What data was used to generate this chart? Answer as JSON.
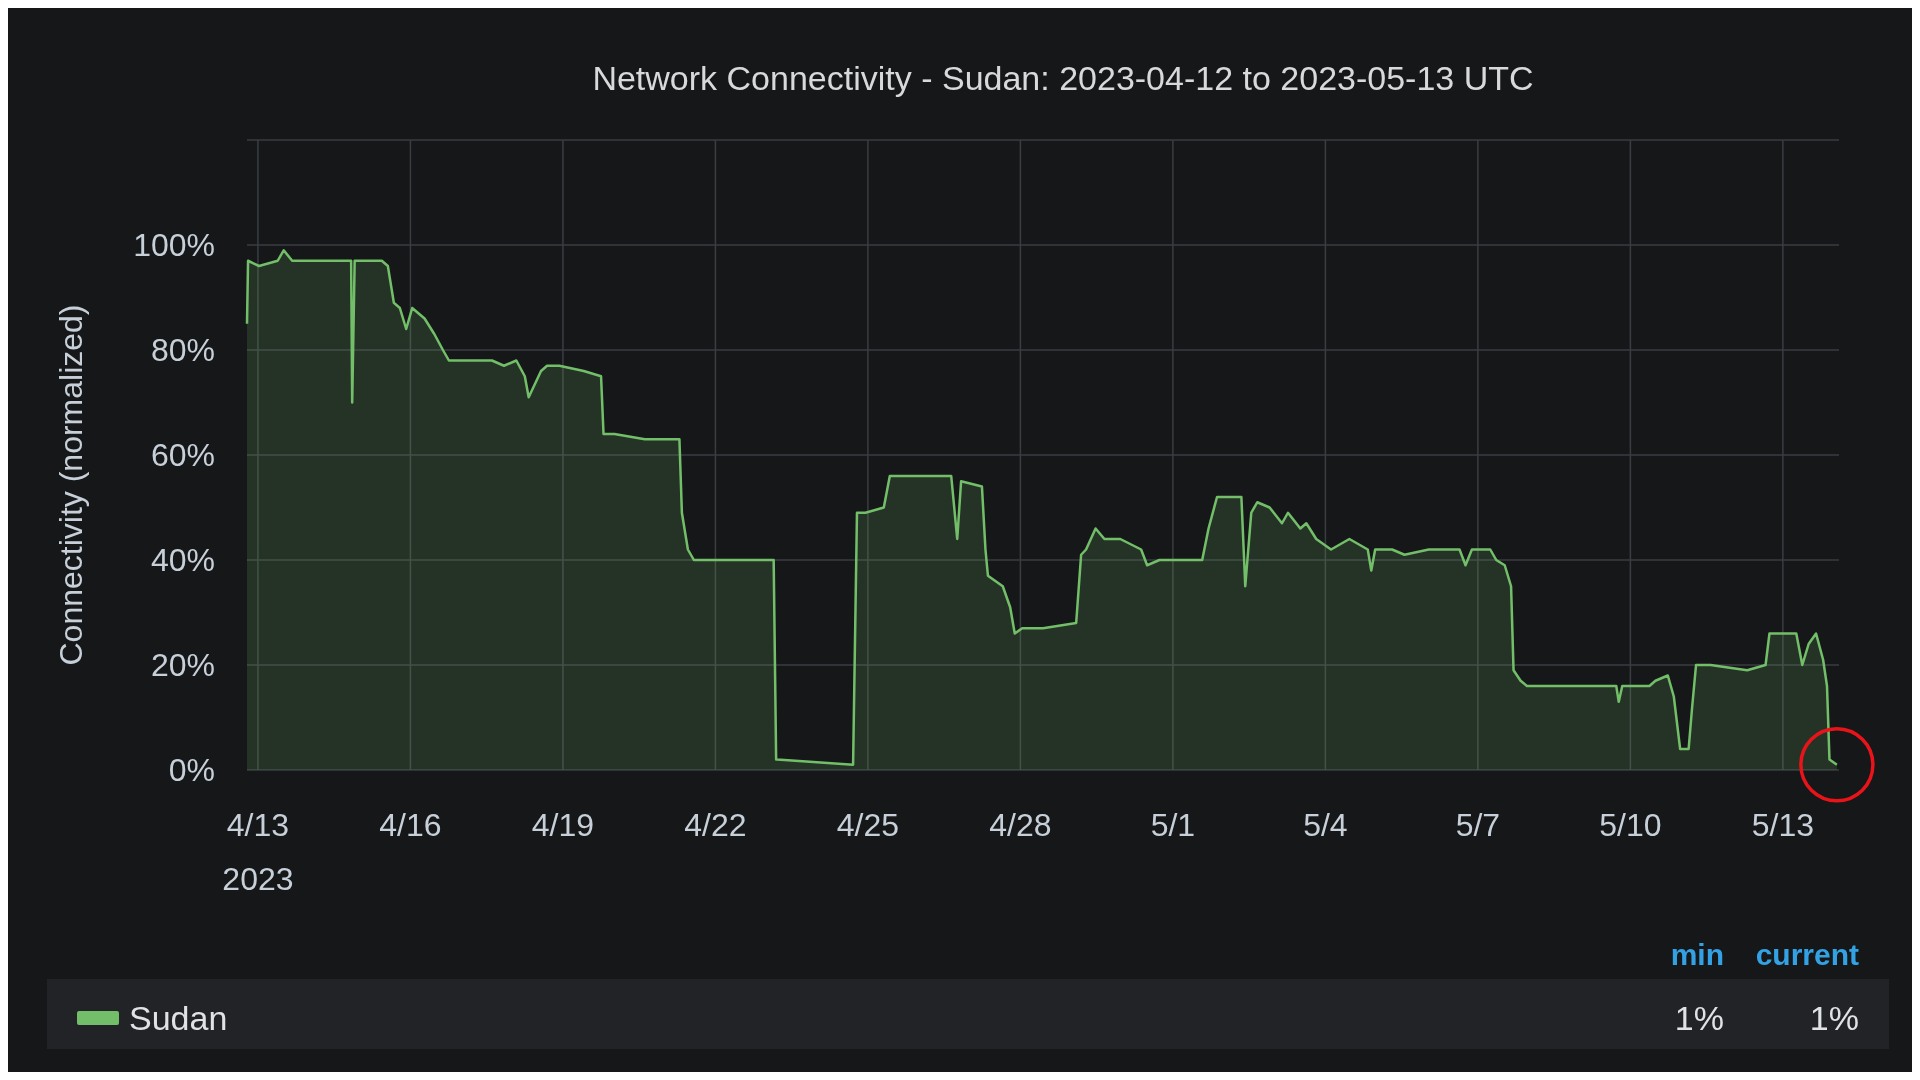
{
  "chart_data": {
    "type": "area",
    "title": "Network Connectivity - Sudan: 2023-04-12 to 2023-05-13 UTC",
    "ylabel": "Connectivity (normalized)",
    "xlim": [
      "2023-04-12T18:50",
      "2023-05-14T02:30"
    ],
    "xticks": [
      {
        "value": "2023-04-13T00:00",
        "label": "4/13\n2023"
      },
      {
        "value": "2023-04-16T00:00",
        "label": "4/16"
      },
      {
        "value": "2023-04-19T00:00",
        "label": "4/19"
      },
      {
        "value": "2023-04-22T00:00",
        "label": "4/22"
      },
      {
        "value": "2023-04-25T00:00",
        "label": "4/25"
      },
      {
        "value": "2023-04-28T00:00",
        "label": "4/28"
      },
      {
        "value": "2023-05-01T00:00",
        "label": "5/1"
      },
      {
        "value": "2023-05-04T00:00",
        "label": "5/4"
      },
      {
        "value": "2023-05-07T00:00",
        "label": "5/7"
      },
      {
        "value": "2023-05-10T00:00",
        "label": "5/10"
      },
      {
        "value": "2023-05-13T00:00",
        "label": "5/13"
      }
    ],
    "ylim": [
      0,
      120
    ],
    "yticks": [
      {
        "value": 0,
        "label": "0%"
      },
      {
        "value": 20,
        "label": "20%"
      },
      {
        "value": 40,
        "label": "40%"
      },
      {
        "value": 60,
        "label": "60%"
      },
      {
        "value": 80,
        "label": "80%"
      },
      {
        "value": 100,
        "label": "100%"
      }
    ],
    "grid": true,
    "legend": "bottom",
    "line_style": "solid",
    "annotations": [
      "min",
      "current",
      "1%",
      "1%"
    ],
    "series": [
      {
        "name": "Sudan",
        "color": "#73bf69",
        "x": [
          "2023-04-12T18:50",
          "2023-04-12T19:20",
          "2023-04-13T00:30",
          "2023-04-13T09:20",
          "2023-04-13T12:10",
          "2023-04-13T16:10",
          "2023-04-13T20:50",
          "2023-04-14T14:10",
          "2023-04-14T20:00",
          "2023-04-14T20:30",
          "2023-04-14T21:40",
          "2023-04-15T10:30",
          "2023-04-15T13:20",
          "2023-04-15T16:10",
          "2023-04-15T19:00",
          "2023-04-15T22:00",
          "2023-04-16T00:50",
          "2023-04-16T06:40",
          "2023-04-16T11:20",
          "2023-04-16T15:20",
          "2023-04-16T18:10",
          "2023-04-17T02:50",
          "2023-04-17T14:30",
          "2023-04-17T20:10",
          "2023-04-18T02:00",
          "2023-04-18T06:00",
          "2023-04-18T07:50",
          "2023-04-18T13:40",
          "2023-04-18T16:30",
          "2023-04-18T22:20",
          "2023-04-19T09:50",
          "2023-04-19T18:00",
          "2023-04-19T19:10",
          "2023-04-20T00:20",
          "2023-04-20T14:40",
          "2023-04-21T07:00",
          "2023-04-21T08:10",
          "2023-04-21T11:00",
          "2023-04-21T13:50",
          "2023-04-23T03:30",
          "2023-04-23T04:40",
          "2023-04-23T05:10",
          "2023-04-24T17:00",
          "2023-04-24T18:50",
          "2023-04-24T22:50",
          "2023-04-25T07:30",
          "2023-04-25T10:20",
          "2023-04-26T00:50",
          "2023-04-26T15:20",
          "2023-04-26T18:10",
          "2023-04-26T20:00",
          "2023-04-27T05:50",
          "2023-04-27T07:30",
          "2023-04-27T08:40",
          "2023-04-27T15:40",
          "2023-04-27T19:10",
          "2023-04-27T21:20",
          "2023-04-28T00:50",
          "2023-04-28T10:40",
          "2023-04-29T02:20",
          "2023-04-29T04:40",
          "2023-04-29T07:00",
          "2023-04-29T11:30",
          "2023-04-29T15:40",
          "2023-04-29T23:10",
          "2023-04-30T09:00",
          "2023-04-30T11:50",
          "2023-04-30T17:40",
          "2023-05-01T13:50",
          "2023-05-01T16:50",
          "2023-05-01T20:50",
          "2023-05-02T01:30",
          "2023-05-02T08:20",
          "2023-05-02T10:10",
          "2023-05-02T13:00",
          "2023-05-02T15:50",
          "2023-05-02T21:40",
          "2023-05-03T03:30",
          "2023-05-03T06:20",
          "2023-05-03T12:10",
          "2023-05-03T15:00",
          "2023-05-03T19:40",
          "2023-05-04T02:40",
          "2023-05-04T11:20",
          "2023-05-04T20:00",
          "2023-05-04T21:40",
          "2023-05-04T23:30",
          "2023-05-05T07:30",
          "2023-05-05T13:20",
          "2023-05-06T00:50",
          "2023-05-06T15:20",
          "2023-05-06T18:10",
          "2023-05-06T21:10",
          "2023-05-07T05:50",
          "2023-05-07T08:40",
          "2023-05-07T12:40",
          "2023-05-07T15:40",
          "2023-05-07T16:50",
          "2023-05-07T20:10",
          "2023-05-07T23:10",
          "2023-05-08T16:30",
          "2023-05-09T09:50",
          "2023-05-09T17:20",
          "2023-05-09T18:30",
          "2023-05-09T20:10",
          "2023-05-10T09:00",
          "2023-05-10T11:50",
          "2023-05-10T17:40",
          "2023-05-10T20:30",
          "2023-05-10T23:30",
          "2023-05-11T03:30",
          "2023-05-11T05:10",
          "2023-05-11T07:00",
          "2023-05-11T13:50",
          "2023-05-12T07:10",
          "2023-05-12T15:50",
          "2023-05-12T17:40",
          "2023-05-13T00:30",
          "2023-05-13T06:20",
          "2023-05-13T09:10",
          "2023-05-13T12:10",
          "2023-05-13T15:40",
          "2023-05-13T19:00",
          "2023-05-13T20:50",
          "2023-05-13T22:00",
          "2023-05-14T01:30"
        ],
        "values": [
          85,
          97,
          96,
          97,
          99,
          97,
          97,
          97,
          97,
          70,
          97,
          97,
          96,
          89,
          88,
          84,
          88,
          86,
          83,
          80,
          78,
          78,
          78,
          77,
          78,
          75,
          71,
          76,
          77,
          77,
          76,
          75,
          64,
          64,
          63,
          63,
          49,
          42,
          40,
          40,
          2,
          2,
          1,
          49,
          49,
          50,
          56,
          56,
          56,
          44,
          55,
          54,
          42,
          37,
          35,
          31,
          26,
          27,
          27,
          28,
          41,
          42,
          46,
          44,
          44,
          42,
          39,
          40,
          40,
          46,
          52,
          52,
          52,
          35,
          49,
          51,
          50,
          47,
          49,
          46,
          47,
          44,
          42,
          44,
          42,
          38,
          42,
          42,
          41,
          42,
          42,
          39,
          42,
          42,
          40,
          39,
          35,
          19,
          17,
          16,
          16,
          16,
          16,
          13,
          16,
          16,
          17,
          18,
          14,
          4,
          4,
          12,
          20,
          20,
          19,
          20,
          26,
          26,
          26,
          20,
          24,
          26,
          21,
          16,
          2,
          1
        ]
      }
    ]
  }
}
